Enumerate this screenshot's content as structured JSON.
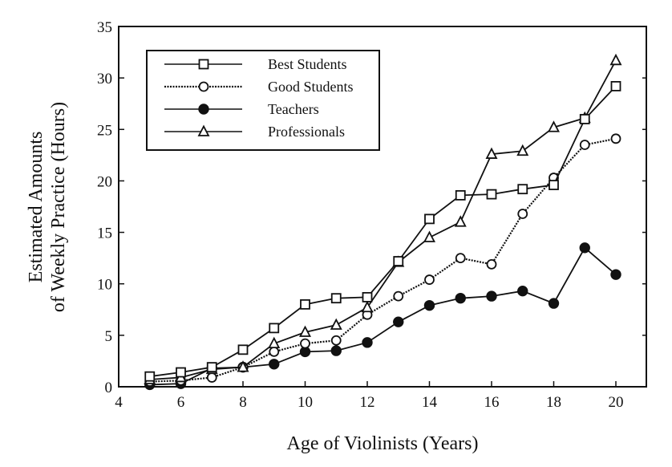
{
  "chart_data": {
    "type": "line",
    "title": "",
    "xlabel": "Age of Violinists (Years)",
    "ylabel_lines": [
      "Estimated Amounts",
      "of Weekly Practice (Hours)"
    ],
    "xlim": [
      4,
      21
    ],
    "ylim": [
      0,
      35
    ],
    "xticks": [
      4,
      6,
      8,
      10,
      12,
      14,
      16,
      18,
      20
    ],
    "yticks": [
      0,
      5,
      10,
      15,
      20,
      25,
      30,
      35
    ],
    "grid": false,
    "legend_position": "top-left",
    "x": [
      5,
      6,
      7,
      8,
      9,
      10,
      11,
      12,
      13,
      14,
      15,
      16,
      17,
      18,
      19,
      20
    ],
    "series": [
      {
        "name": "Best Students",
        "marker": "square",
        "line": "solid",
        "values": [
          1.0,
          1.4,
          1.9,
          3.6,
          5.7,
          8.0,
          8.6,
          8.7,
          12.2,
          16.3,
          18.6,
          18.7,
          19.2,
          19.6,
          26.0,
          29.2
        ]
      },
      {
        "name": "Good Students",
        "marker": "circle",
        "line": "dotted",
        "values": [
          0.5,
          0.6,
          0.9,
          1.9,
          3.4,
          4.2,
          4.5,
          7.0,
          8.8,
          10.4,
          12.5,
          11.9,
          16.8,
          20.3,
          23.5,
          24.1
        ]
      },
      {
        "name": "Teachers",
        "marker": "filled-circle",
        "line": "solid",
        "values": [
          0.2,
          0.3,
          1.8,
          1.9,
          2.2,
          3.4,
          3.5,
          4.3,
          6.3,
          7.9,
          8.6,
          8.8,
          9.3,
          8.1,
          13.5,
          10.9
        ]
      },
      {
        "name": "Professionals",
        "marker": "triangle",
        "line": "solid",
        "values": [
          0.7,
          0.9,
          1.7,
          1.9,
          4.2,
          5.3,
          6.0,
          7.7,
          12.1,
          14.5,
          16.0,
          22.6,
          22.9,
          25.2,
          26.1,
          31.7
        ]
      }
    ]
  }
}
